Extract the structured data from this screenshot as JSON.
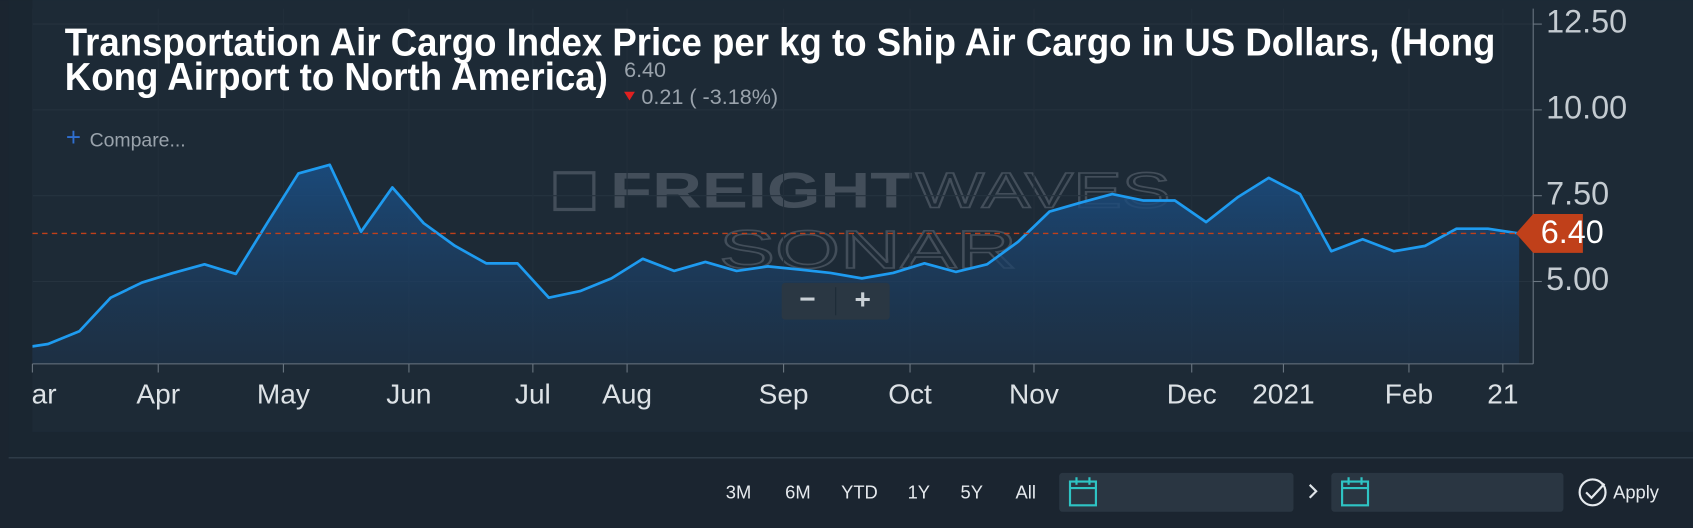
{
  "chart_data": {
    "type": "line",
    "title_lines": [
      "Transportation Air Cargo Index Price per kg to Ship Air Cargo in US Dollars, (Hong",
      "Kong Airport to North America)"
    ],
    "last_value": "6.40",
    "change": "0.21 ( -3.18%)",
    "compare": "Compare...",
    "watermark": [
      "FREIGHT",
      "WAVES",
      "SONAR"
    ],
    "series": [
      {
        "name": "Air Cargo Index",
        "color": "#1e9bf0",
        "x": [
          -0.5,
          0,
          1,
          2,
          3,
          4,
          5,
          6,
          7,
          8,
          9,
          10,
          11,
          12,
          13,
          14,
          15,
          16,
          17,
          18,
          19,
          20,
          21,
          22,
          23,
          24,
          25,
          26,
          27,
          28,
          29,
          30,
          31,
          32,
          33,
          34,
          35,
          36,
          37,
          38,
          39,
          40,
          41,
          42,
          43,
          44,
          45,
          46,
          47
        ],
        "values": [
          3.11,
          3.18,
          3.55,
          4.53,
          4.97,
          5.25,
          5.5,
          5.22,
          6.7,
          8.15,
          8.4,
          6.45,
          7.74,
          6.7,
          6.04,
          5.53,
          5.53,
          4.53,
          4.72,
          5.09,
          5.66,
          5.31,
          5.57,
          5.31,
          5.44,
          5.35,
          5.25,
          5.09,
          5.25,
          5.53,
          5.28,
          5.5,
          6.16,
          7.04,
          7.3,
          7.55,
          7.36,
          7.36,
          6.73,
          7.45,
          8.02,
          7.55,
          5.88,
          6.23,
          5.88,
          6.04,
          6.54,
          6.54,
          6.4
        ]
      }
    ],
    "reference_line": {
      "value": 6.4,
      "label": "6.40",
      "color": "#c0401a"
    },
    "xlim": [
      -0.5,
      47.45
    ],
    "xticks": [
      {
        "value": -0.5,
        "label": "Mar"
      },
      {
        "value": 3.52,
        "label": "Apr"
      },
      {
        "value": 7.52,
        "label": "May"
      },
      {
        "value": 11.53,
        "label": "Jun"
      },
      {
        "value": 15.49,
        "label": "Jul"
      },
      {
        "value": 18.5,
        "label": "Aug"
      },
      {
        "value": 23.5,
        "label": "Sep"
      },
      {
        "value": 27.54,
        "label": "Oct"
      },
      {
        "value": 31.5,
        "label": "Nov"
      },
      {
        "value": 36.54,
        "label": "Dec"
      },
      {
        "value": 39.47,
        "label": "2021"
      },
      {
        "value": 43.48,
        "label": "Feb"
      },
      {
        "value": 46.48,
        "label": "21"
      }
    ],
    "ylim": [
      2.6,
      12.95
    ],
    "yticks": [
      {
        "value": 5,
        "label": "5.00"
      },
      {
        "value": 7.5,
        "label": "7.50"
      },
      {
        "value": 10,
        "label": "10.00"
      },
      {
        "value": 12.5,
        "label": "12.50"
      }
    ],
    "grid": true,
    "zoom_buttons": [
      "−",
      "+"
    ],
    "range_buttons": [
      "3M",
      "6M",
      "YTD",
      "1Y",
      "5Y",
      "All"
    ],
    "apply": "Apply"
  }
}
